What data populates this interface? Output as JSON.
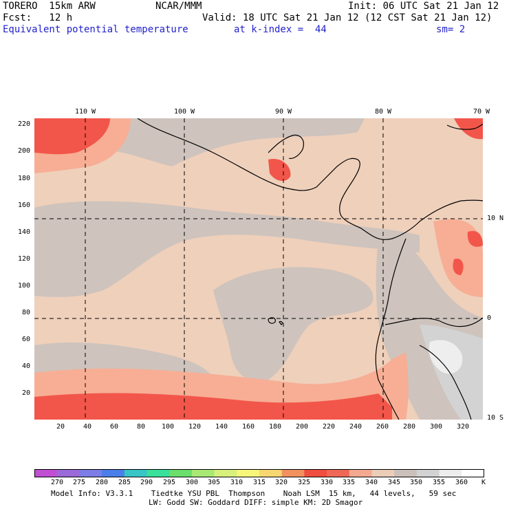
{
  "header": {
    "model": "TORERO  15km ARW",
    "center": "NCAR/MMM",
    "init": "Init: 06 UTC Sat 21 Jan 12",
    "fcst": "Fcst:   12 h",
    "valid": "Valid: 18 UTC Sat 21 Jan 12 (12 CST Sat 21 Jan 12)",
    "field": "Equivalent potential temperature",
    "level": "at k-index =  44",
    "smooth": "sm= 2"
  },
  "map": {
    "top_lon_labels": [
      "110 W",
      "100 W",
      "90 W",
      "80 W",
      "70 W"
    ],
    "right_lat_labels": [
      "10 N",
      "0",
      "10 S"
    ],
    "left_grid_labels": [
      "220",
      "200",
      "180",
      "160",
      "140",
      "120",
      "100",
      "80",
      "60",
      "40",
      "20"
    ],
    "bottom_grid_labels": [
      "20",
      "40",
      "60",
      "80",
      "100",
      "120",
      "140",
      "160",
      "180",
      "200",
      "220",
      "240",
      "260",
      "280",
      "300",
      "320"
    ],
    "colors": {
      "c335": "#f2564a",
      "c340": "#f7ae95",
      "c345": "#efd0bb",
      "c350": "#cec3bd",
      "c355": "#d3d3d3",
      "c360": "#eeeeee",
      "coast": "#000000",
      "grid": "#000000"
    }
  },
  "colorbar": {
    "unit": "K",
    "labels": [
      "270",
      "275",
      "280",
      "285",
      "290",
      "295",
      "300",
      "305",
      "310",
      "315",
      "320",
      "325",
      "330",
      "335",
      "340",
      "345",
      "350",
      "355",
      "360"
    ],
    "colors": [
      "#c14fd3",
      "#9a6ad8",
      "#7c7de6",
      "#4a7ee8",
      "#38c5c5",
      "#38e09a",
      "#6bde6b",
      "#a8e874",
      "#d7f07c",
      "#f8f67a",
      "#f7d772",
      "#f1915f",
      "#f04e3f",
      "#ef6855",
      "#f5a890",
      "#eccdb8",
      "#cbc0ba",
      "#d2d2d2",
      "#ededed",
      "#ffffff"
    ]
  },
  "footer": {
    "line1": "Model Info: V3.3.1    Tiedtke YSU PBL  Thompson    Noah LSM  15 km,   44 levels,   59 sec",
    "line2": "LW: Godd SW: Goddard DIFF: simple KM: 2D Smagor"
  }
}
